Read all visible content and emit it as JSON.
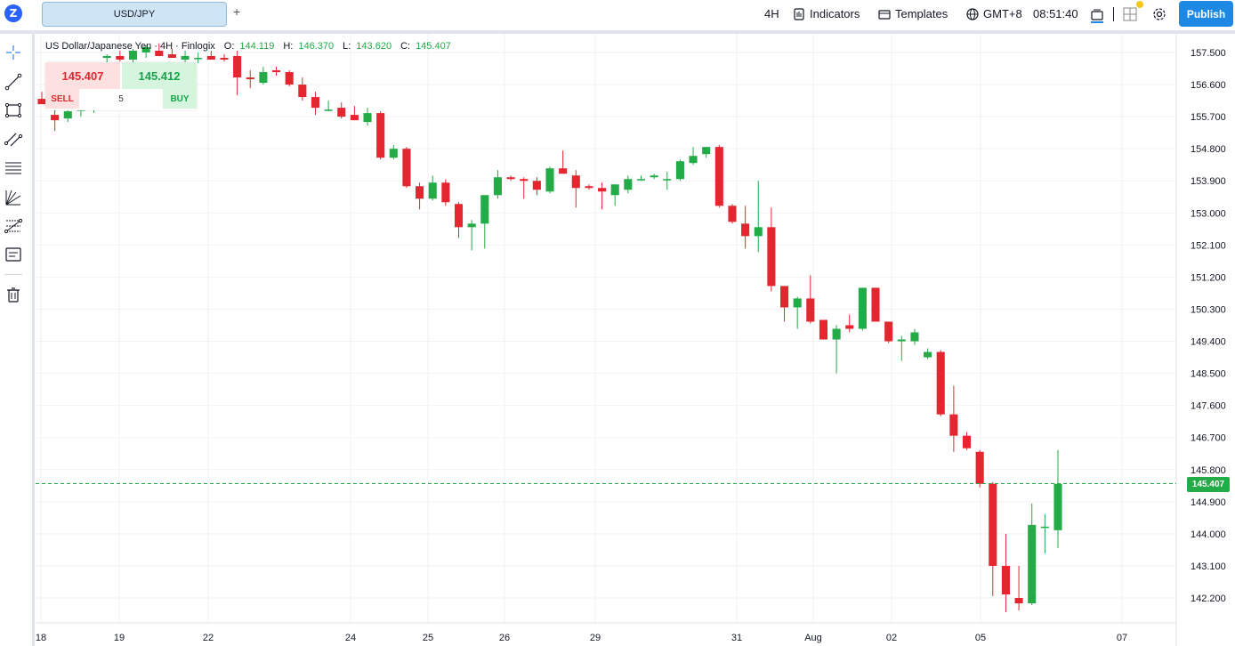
{
  "topbar": {
    "logo_letter": "Z",
    "symbol": "USD/JPY",
    "add_tab": "+",
    "interval": "4H",
    "indicators": "Indicators",
    "templates": "Templates",
    "timezone": "GMT+8",
    "clock": "08:51:40",
    "publish": "Publish"
  },
  "legend": {
    "title": "US Dollar/Japanese Yen · 4H · Finlogix",
    "o_label": "O:",
    "o_value": "144.119",
    "h_label": "H:",
    "h_value": "146.370",
    "l_label": "L:",
    "l_value": "143.620",
    "c_label": "C:",
    "c_value": "145.407"
  },
  "trade": {
    "sell_price": "145.407",
    "buy_price": "145.412",
    "sell_label": "SELL",
    "buy_label": "BUY",
    "quantity": "5"
  },
  "last_price": "145.407",
  "colors": {
    "up": "#22ab46",
    "down": "#e3262f",
    "accent": "#1e88e5"
  },
  "left_tools": [
    "crosshair-icon",
    "trendline-icon",
    "rectangle-icon",
    "channel-icon",
    "fib-retracement-icon",
    "gann-fan-icon",
    "pitchfork-icon",
    "text-note-icon",
    "trash-icon"
  ],
  "chart_data": {
    "type": "candlestick",
    "title": "US Dollar/Japanese Yen · 4H · Finlogix",
    "y_ticks": [
      "157.500",
      "156.600",
      "155.700",
      "154.800",
      "153.900",
      "153.000",
      "152.100",
      "151.200",
      "150.300",
      "149.400",
      "148.500",
      "147.600",
      "146.700",
      "145.800",
      "144.900",
      "144.000",
      "143.100",
      "142.200"
    ],
    "x_ticks": [
      "18",
      "19",
      "22",
      "24",
      "25",
      "26",
      "29",
      "31",
      "Aug",
      "02",
      "05",
      "07"
    ],
    "ylim": [
      141.6,
      158.0
    ],
    "last_price": 145.407,
    "candles": [
      {
        "o": 156.2,
        "h": 156.4,
        "l": 156.1,
        "c": 156.05
      },
      {
        "o": 155.75,
        "h": 156.0,
        "l": 155.3,
        "c": 155.6
      },
      {
        "o": 155.65,
        "h": 155.95,
        "l": 155.55,
        "c": 155.85
      },
      {
        "o": 155.9,
        "h": 156.1,
        "l": 155.7,
        "c": 155.9
      },
      {
        "o": 155.95,
        "h": 156.2,
        "l": 155.8,
        "c": 156.1
      },
      {
        "o": 157.35,
        "h": 157.45,
        "l": 157.2,
        "c": 157.4
      },
      {
        "o": 157.4,
        "h": 157.55,
        "l": 157.25,
        "c": 157.3
      },
      {
        "o": 157.3,
        "h": 157.6,
        "l": 157.2,
        "c": 157.55
      },
      {
        "o": 157.5,
        "h": 157.7,
        "l": 157.35,
        "c": 157.65
      },
      {
        "o": 157.55,
        "h": 157.75,
        "l": 157.45,
        "c": 157.4
      },
      {
        "o": 157.45,
        "h": 157.6,
        "l": 157.4,
        "c": 157.35
      },
      {
        "o": 157.3,
        "h": 157.55,
        "l": 157.2,
        "c": 157.4
      },
      {
        "o": 157.35,
        "h": 157.5,
        "l": 157.2,
        "c": 157.35
      },
      {
        "o": 157.4,
        "h": 157.55,
        "l": 157.3,
        "c": 157.3
      },
      {
        "o": 157.35,
        "h": 157.45,
        "l": 157.25,
        "c": 157.3
      },
      {
        "o": 157.4,
        "h": 157.55,
        "l": 156.3,
        "c": 156.8
      },
      {
        "o": 156.8,
        "h": 157.0,
        "l": 156.5,
        "c": 156.75
      },
      {
        "o": 156.65,
        "h": 157.1,
        "l": 156.6,
        "c": 156.95
      },
      {
        "o": 157.0,
        "h": 157.1,
        "l": 156.85,
        "c": 156.95
      },
      {
        "o": 156.95,
        "h": 157.0,
        "l": 156.55,
        "c": 156.6
      },
      {
        "o": 156.6,
        "h": 156.8,
        "l": 156.15,
        "c": 156.25
      },
      {
        "o": 156.25,
        "h": 156.4,
        "l": 155.75,
        "c": 155.95
      },
      {
        "o": 155.9,
        "h": 156.15,
        "l": 155.85,
        "c": 155.9
      },
      {
        "o": 155.95,
        "h": 156.1,
        "l": 155.65,
        "c": 155.7
      },
      {
        "o": 155.75,
        "h": 156.0,
        "l": 155.6,
        "c": 155.6
      },
      {
        "o": 155.55,
        "h": 155.95,
        "l": 155.45,
        "c": 155.8
      },
      {
        "o": 155.8,
        "h": 155.85,
        "l": 154.5,
        "c": 154.55
      },
      {
        "o": 154.55,
        "h": 154.9,
        "l": 154.5,
        "c": 154.8
      },
      {
        "o": 154.8,
        "h": 154.85,
        "l": 153.7,
        "c": 153.75
      },
      {
        "o": 153.75,
        "h": 153.85,
        "l": 153.1,
        "c": 153.4
      },
      {
        "o": 153.4,
        "h": 154.05,
        "l": 153.35,
        "c": 153.85
      },
      {
        "o": 153.85,
        "h": 153.95,
        "l": 153.2,
        "c": 153.3
      },
      {
        "o": 153.25,
        "h": 153.3,
        "l": 152.3,
        "c": 152.6
      },
      {
        "o": 152.6,
        "h": 152.8,
        "l": 151.95,
        "c": 152.7
      },
      {
        "o": 152.7,
        "h": 153.4,
        "l": 152.0,
        "c": 153.5
      },
      {
        "o": 153.5,
        "h": 154.2,
        "l": 153.4,
        "c": 154.0
      },
      {
        "o": 154.0,
        "h": 154.05,
        "l": 153.9,
        "c": 153.95
      },
      {
        "o": 153.95,
        "h": 154.0,
        "l": 153.4,
        "c": 153.9
      },
      {
        "o": 153.9,
        "h": 154.0,
        "l": 153.5,
        "c": 153.65
      },
      {
        "o": 153.6,
        "h": 154.3,
        "l": 153.55,
        "c": 154.25
      },
      {
        "o": 154.25,
        "h": 154.75,
        "l": 154.15,
        "c": 154.1
      },
      {
        "o": 154.05,
        "h": 154.2,
        "l": 153.15,
        "c": 153.7
      },
      {
        "o": 153.75,
        "h": 153.8,
        "l": 153.65,
        "c": 153.7
      },
      {
        "o": 153.7,
        "h": 153.85,
        "l": 153.1,
        "c": 153.6
      },
      {
        "o": 153.5,
        "h": 153.8,
        "l": 153.2,
        "c": 153.8
      },
      {
        "o": 153.65,
        "h": 154.05,
        "l": 153.55,
        "c": 153.95
      },
      {
        "o": 153.95,
        "h": 154.05,
        "l": 153.9,
        "c": 153.95
      },
      {
        "o": 154.0,
        "h": 154.1,
        "l": 153.95,
        "c": 154.05
      },
      {
        "o": 153.95,
        "h": 154.15,
        "l": 153.65,
        "c": 153.95
      },
      {
        "o": 153.95,
        "h": 154.5,
        "l": 153.9,
        "c": 154.45
      },
      {
        "o": 154.4,
        "h": 154.85,
        "l": 154.35,
        "c": 154.6
      },
      {
        "o": 154.65,
        "h": 154.85,
        "l": 154.55,
        "c": 154.85
      },
      {
        "o": 154.85,
        "h": 154.9,
        "l": 153.15,
        "c": 153.2
      },
      {
        "o": 153.2,
        "h": 153.25,
        "l": 152.7,
        "c": 152.75
      },
      {
        "o": 152.7,
        "h": 153.2,
        "l": 152.0,
        "c": 152.35
      },
      {
        "o": 152.35,
        "h": 153.9,
        "l": 151.9,
        "c": 152.6
      },
      {
        "o": 152.6,
        "h": 153.15,
        "l": 150.8,
        "c": 150.95
      },
      {
        "o": 150.95,
        "h": 150.95,
        "l": 149.95,
        "c": 150.35
      },
      {
        "o": 150.35,
        "h": 150.65,
        "l": 149.75,
        "c": 150.6
      },
      {
        "o": 150.6,
        "h": 151.25,
        "l": 149.9,
        "c": 149.95
      },
      {
        "o": 150.0,
        "h": 150.0,
        "l": 149.45,
        "c": 149.45
      },
      {
        "o": 149.45,
        "h": 149.85,
        "l": 148.5,
        "c": 149.75
      },
      {
        "o": 149.85,
        "h": 150.15,
        "l": 149.65,
        "c": 149.75
      },
      {
        "o": 149.75,
        "h": 150.9,
        "l": 149.7,
        "c": 150.9
      },
      {
        "o": 150.9,
        "h": 150.9,
        "l": 149.95,
        "c": 149.95
      },
      {
        "o": 149.95,
        "h": 149.95,
        "l": 149.35,
        "c": 149.4
      },
      {
        "o": 149.4,
        "h": 149.55,
        "l": 148.85,
        "c": 149.45
      },
      {
        "o": 149.4,
        "h": 149.75,
        "l": 149.3,
        "c": 149.65
      },
      {
        "o": 148.95,
        "h": 149.2,
        "l": 148.9,
        "c": 149.1
      },
      {
        "o": 149.1,
        "h": 149.15,
        "l": 147.3,
        "c": 147.35
      },
      {
        "o": 147.35,
        "h": 148.15,
        "l": 146.3,
        "c": 146.75
      },
      {
        "o": 146.75,
        "h": 146.85,
        "l": 146.35,
        "c": 146.4
      },
      {
        "o": 146.3,
        "h": 146.35,
        "l": 145.3,
        "c": 145.4
      },
      {
        "o": 145.4,
        "h": 145.45,
        "l": 142.25,
        "c": 143.1
      },
      {
        "o": 143.1,
        "h": 144.0,
        "l": 141.8,
        "c": 142.3
      },
      {
        "o": 142.2,
        "h": 143.1,
        "l": 141.85,
        "c": 142.05
      },
      {
        "o": 142.05,
        "h": 144.85,
        "l": 142.0,
        "c": 144.25
      },
      {
        "o": 144.2,
        "h": 144.55,
        "l": 143.45,
        "c": 144.2
      },
      {
        "o": 144.1,
        "h": 146.35,
        "l": 143.6,
        "c": 145.4
      }
    ]
  }
}
